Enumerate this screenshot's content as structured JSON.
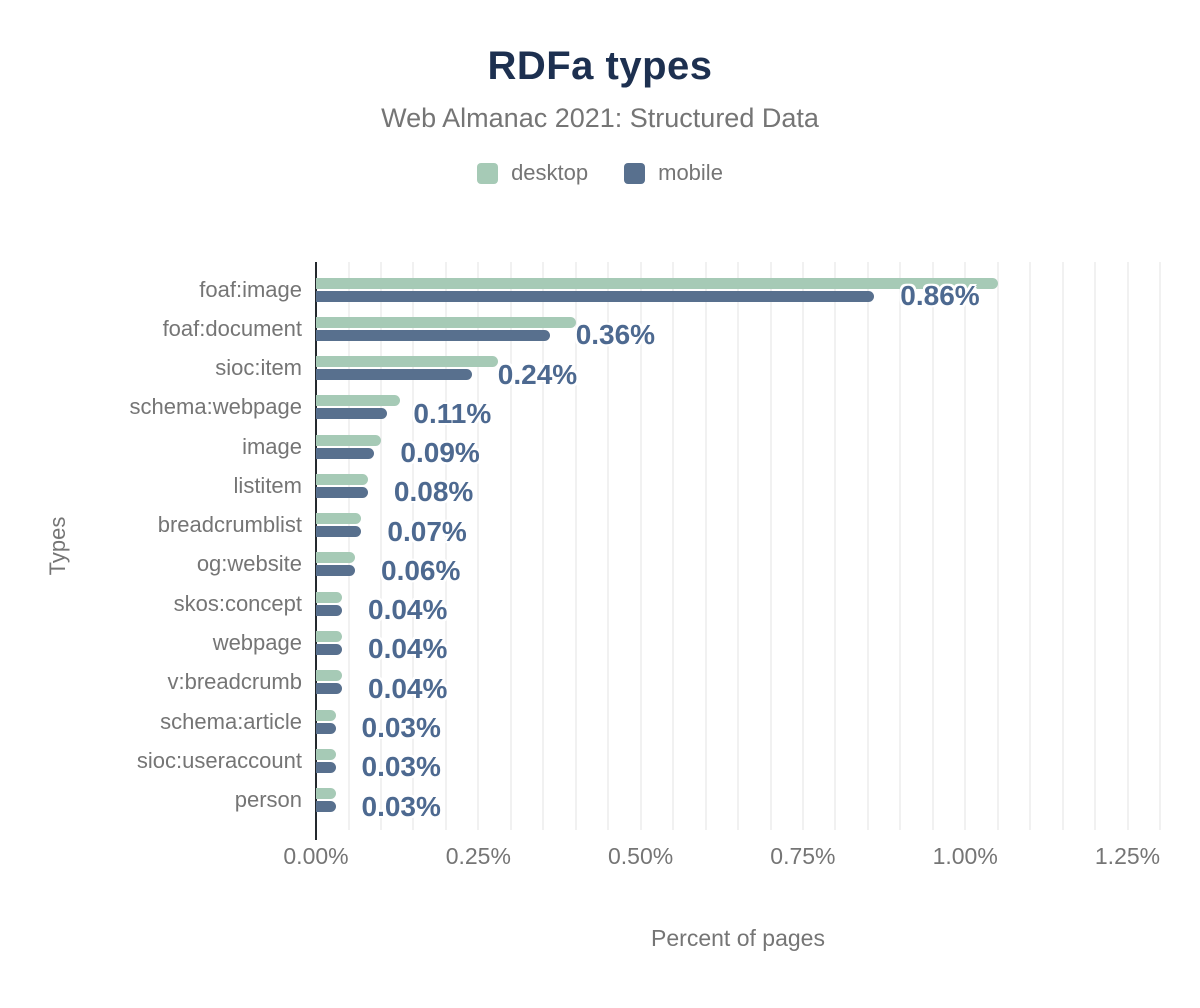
{
  "header": {
    "title": "RDFa types",
    "subtitle": "Web Almanac 2021: Structured Data"
  },
  "chart_data": {
    "type": "bar",
    "orientation": "horizontal",
    "title": "RDFa types",
    "subtitle": "Web Almanac 2021: Structured Data",
    "xlabel": "Percent of pages",
    "ylabel": "Types",
    "xlim": [
      0,
      1.3
    ],
    "x_ticks": [
      "0.00%",
      "0.25%",
      "0.50%",
      "0.75%",
      "1.00%",
      "1.25%"
    ],
    "x_tick_values": [
      0,
      0.25,
      0.5,
      0.75,
      1.0,
      1.25
    ],
    "gridline_step": 0.05,
    "grid": true,
    "legend_position": "top",
    "categories": [
      "foaf:image",
      "foaf:document",
      "sioc:item",
      "schema:webpage",
      "image",
      "listitem",
      "breadcrumblist",
      "og:website",
      "skos:concept",
      "webpage",
      "v:breadcrumb",
      "schema:article",
      "sioc:useraccount",
      "person"
    ],
    "series": [
      {
        "name": "desktop",
        "color": "#a6cab6",
        "values": [
          1.05,
          0.4,
          0.28,
          0.13,
          0.1,
          0.08,
          0.07,
          0.06,
          0.04,
          0.04,
          0.04,
          0.03,
          0.03,
          0.03
        ]
      },
      {
        "name": "mobile",
        "color": "#58708e",
        "values": [
          0.86,
          0.36,
          0.24,
          0.11,
          0.09,
          0.08,
          0.07,
          0.06,
          0.04,
          0.04,
          0.04,
          0.03,
          0.03,
          0.03
        ],
        "data_labels": [
          "0.86%",
          "0.36%",
          "0.24%",
          "0.11%",
          "0.09%",
          "0.08%",
          "0.07%",
          "0.06%",
          "0.04%",
          "0.04%",
          "0.04%",
          "0.03%",
          "0.03%",
          "0.03%"
        ]
      }
    ]
  },
  "colors": {
    "title": "#1d3050",
    "muted_text": "#757575",
    "data_label": "#4d6990",
    "axis_line": "#24292e",
    "gridline": "#f1f1f1",
    "background": "#ffffff"
  }
}
